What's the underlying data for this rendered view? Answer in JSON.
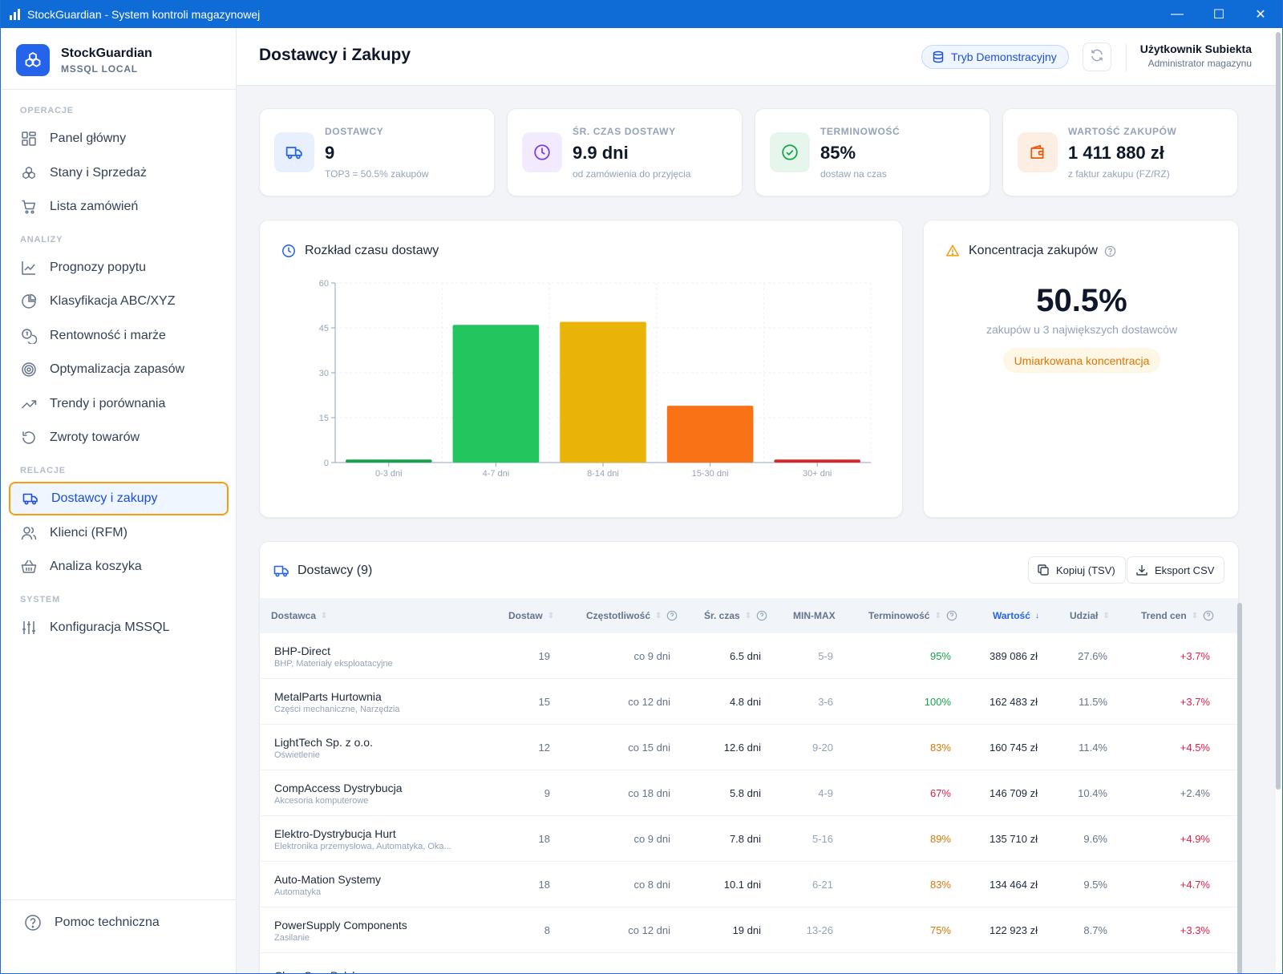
{
  "window": {
    "title": "StockGuardian - System kontroli magazynowej",
    "minimize": "—",
    "maximize": "☐",
    "close": "✕"
  },
  "brand": {
    "name": "StockGuardian",
    "subtitle": "MSSQL LOCAL"
  },
  "sidebar": {
    "sections": [
      {
        "title": "OPERACJE",
        "items": [
          {
            "label": "Panel główny",
            "icon": "dashboard-icon"
          },
          {
            "label": "Stany i Sprzedaż",
            "icon": "boxes-icon"
          },
          {
            "label": "Lista zamówień",
            "icon": "cart-icon"
          }
        ]
      },
      {
        "title": "ANALIZY",
        "items": [
          {
            "label": "Prognozy popytu",
            "icon": "line-chart-icon"
          },
          {
            "label": "Klasyfikacja ABC/XYZ",
            "icon": "pie-chart-icon"
          },
          {
            "label": "Rentowność i marże",
            "icon": "coins-icon"
          },
          {
            "label": "Optymalizacja zapasów",
            "icon": "target-icon"
          },
          {
            "label": "Trendy i porównania",
            "icon": "trending-up-icon"
          },
          {
            "label": "Zwroty towarów",
            "icon": "undo-icon"
          }
        ]
      },
      {
        "title": "RELACJE",
        "items": [
          {
            "label": "Dostawcy i zakupy",
            "icon": "truck-icon",
            "active": true
          },
          {
            "label": "Klienci (RFM)",
            "icon": "users-icon"
          },
          {
            "label": "Analiza koszyka",
            "icon": "basket-icon"
          }
        ]
      },
      {
        "title": "SYSTEM",
        "items": [
          {
            "label": "Konfiguracja MSSQL",
            "icon": "sliders-icon"
          }
        ]
      }
    ],
    "help_label": "Pomoc techniczna"
  },
  "header": {
    "title": "Dostawcy i Zakupy",
    "demo_label": "Tryb Demonstracyjny",
    "user_name": "Użytkownik Subiekta",
    "user_role": "Administrator magazynu"
  },
  "kpis": [
    {
      "label": "DOSTAWCY",
      "value": "9",
      "sub": "TOP3 = 50.5% zakupów",
      "icon": "truck-icon",
      "color": "#2563eb",
      "bg": "#e8f0fd"
    },
    {
      "label": "ŚR. CZAS DOSTAWY",
      "value": "9.9 dni",
      "sub": "od zamówienia do przyjęcia",
      "icon": "clock-icon",
      "color": "#7c3aed",
      "bg": "#f1ebfd"
    },
    {
      "label": "TERMINOWOŚĆ",
      "value": "85%",
      "sub": "dostaw na czas",
      "icon": "check-circle-icon",
      "color": "#16a34a",
      "bg": "#e7f6ec"
    },
    {
      "label": "WARTOŚĆ ZAKUPÓW",
      "value": "1 411 880 zł",
      "sub": "z faktur zakupu (FZ/RZ)",
      "icon": "wallet-icon",
      "color": "#ea580c",
      "bg": "#fdeee3"
    }
  ],
  "distribution": {
    "title": "Rozkład czasu dostawy"
  },
  "chart_data": {
    "type": "bar",
    "categories": [
      "0-3 dni",
      "4-7 dni",
      "8-14 dni",
      "15-30 dni",
      "30+ dni"
    ],
    "values": [
      1,
      46,
      47,
      19,
      1
    ],
    "colors": [
      "#16a34a",
      "#22c55e",
      "#eab308",
      "#f97316",
      "#dc2626"
    ],
    "yticks": [
      "60",
      "45",
      "30",
      "15",
      "0"
    ],
    "ylim": [
      0,
      60
    ],
    "grid": true
  },
  "concentration": {
    "title": "Koncentracja zakupów",
    "value": "50.5%",
    "sub": "zakupów u 3 największych dostawców",
    "badge": "Umiarkowana koncentracja"
  },
  "suppliers": {
    "title": "Dostawcy (9)",
    "copy_label": "Kopiuj (TSV)",
    "export_label": "Eksport CSV",
    "columns": [
      "Dostawca",
      "Dostaw",
      "Częstotliwość",
      "Śr. czas",
      "MIN-MAX",
      "Terminowość",
      "Wartość",
      "Udział",
      "Trend cen"
    ],
    "rows": [
      {
        "name": "BHP-Direct",
        "category": "BHP, Materiały eksploatacyjne",
        "deliveries": "19",
        "frequency": "co 9 dni",
        "avg_time": "6.5 dni",
        "minmax": "5-9",
        "ontime": "95%",
        "ontime_color": "#16a34a",
        "value": "389 086 zł",
        "share": "27.6%",
        "trend": "+3.7%",
        "trend_color": "#e11d48"
      },
      {
        "name": "MetalParts Hurtownia",
        "category": "Części mechaniczne, Narzędzia",
        "deliveries": "15",
        "frequency": "co 12 dni",
        "avg_time": "4.8 dni",
        "minmax": "3-6",
        "ontime": "100%",
        "ontime_color": "#16a34a",
        "value": "162 483 zł",
        "share": "11.5%",
        "trend": "+3.7%",
        "trend_color": "#e11d48"
      },
      {
        "name": "LightTech Sp. z o.o.",
        "category": "Oświetlenie",
        "deliveries": "12",
        "frequency": "co 15 dni",
        "avg_time": "12.6 dni",
        "minmax": "9-20",
        "ontime": "83%",
        "ontime_color": "#d97706",
        "value": "160 745 zł",
        "share": "11.4%",
        "trend": "+4.5%",
        "trend_color": "#e11d48"
      },
      {
        "name": "CompAccess Dystrybucja",
        "category": "Akcesoria komputerowe",
        "deliveries": "9",
        "frequency": "co 18 dni",
        "avg_time": "5.8 dni",
        "minmax": "4-9",
        "ontime": "67%",
        "ontime_color": "#e11d48",
        "value": "146 709 zł",
        "share": "10.4%",
        "trend": "+2.4%",
        "trend_color": "#64748b"
      },
      {
        "name": "Elektro-Dystrybucja Hurt",
        "category": "Elektronika przemysłowa, Automatyka, Oka...",
        "deliveries": "18",
        "frequency": "co 9 dni",
        "avg_time": "7.8 dni",
        "minmax": "5-16",
        "ontime": "89%",
        "ontime_color": "#d97706",
        "value": "135 710 zł",
        "share": "9.6%",
        "trend": "+4.9%",
        "trend_color": "#e11d48"
      },
      {
        "name": "Auto-Mation Systemy",
        "category": "Automatyka",
        "deliveries": "18",
        "frequency": "co 8 dni",
        "avg_time": "10.1 dni",
        "minmax": "6-21",
        "ontime": "83%",
        "ontime_color": "#d97706",
        "value": "134 464 zł",
        "share": "9.5%",
        "trend": "+4.7%",
        "trend_color": "#e11d48"
      },
      {
        "name": "PowerSupply Components",
        "category": "Zasilanie",
        "deliveries": "8",
        "frequency": "co 12 dni",
        "avg_time": "19 dni",
        "minmax": "13-26",
        "ontime": "75%",
        "ontime_color": "#d97706",
        "value": "122 923 zł",
        "share": "8.7%",
        "trend": "+3.3%",
        "trend_color": "#e11d48"
      },
      {
        "name": "ChemServ Polska",
        "category": "",
        "deliveries": "",
        "frequency": "",
        "avg_time": "",
        "minmax": "",
        "ontime": "",
        "ontime_color": "#64748b",
        "value": "",
        "share": "",
        "trend": "",
        "trend_color": "#64748b"
      }
    ]
  }
}
